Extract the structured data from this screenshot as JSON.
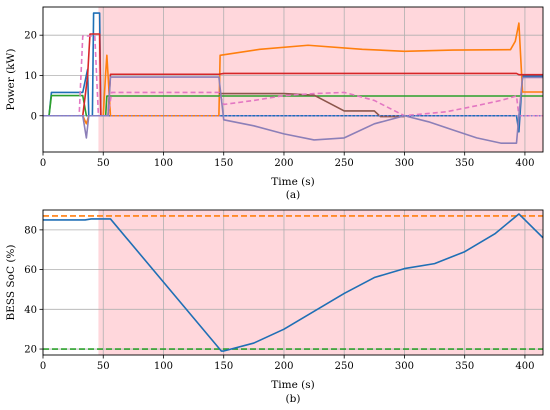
{
  "chart_data": [
    {
      "type": "line",
      "caption": "(a)",
      "xlabel": "Time (s)",
      "ylabel": "Power (kW)",
      "xlim": [
        0,
        415
      ],
      "ylim": [
        -9,
        27
      ],
      "xticks": [
        0,
        50,
        100,
        150,
        200,
        250,
        300,
        350,
        400
      ],
      "yticks": [
        0,
        10,
        20
      ],
      "grid": true,
      "shaded_region": {
        "x_start": 46,
        "x_end": 415,
        "color": "#ffd7dc"
      },
      "series": [
        {
          "color": "#1f6fb5",
          "style": "solid",
          "points": [
            [
              0,
              0
            ],
            [
              5,
              0
            ],
            [
              7,
              5.8
            ],
            [
              30,
              5.8
            ],
            [
              33,
              5.8
            ],
            [
              37,
              11.5
            ],
            [
              38,
              0
            ],
            [
              41,
              0
            ],
            [
              42,
              25.5
            ],
            [
              47,
              25.5
            ],
            [
              48,
              0
            ],
            [
              146,
              0
            ],
            [
              393,
              0
            ],
            [
              395,
              -4
            ],
            [
              398,
              9.8
            ],
            [
              415,
              9.8
            ]
          ]
        },
        {
          "color": "#ff7f0e",
          "style": "solid",
          "points": [
            [
              0,
              0
            ],
            [
              33,
              0
            ],
            [
              36,
              -2
            ],
            [
              38,
              0
            ],
            [
              50,
              0
            ],
            [
              52,
              10.5
            ],
            [
              53,
              15
            ],
            [
              56,
              0
            ],
            [
              146,
              0
            ],
            [
              147,
              15
            ],
            [
              180,
              16.5
            ],
            [
              220,
              17.5
            ],
            [
              265,
              16.5
            ],
            [
              300,
              16
            ],
            [
              340,
              16.3
            ],
            [
              388,
              16.4
            ],
            [
              392,
              18.5
            ],
            [
              395,
              23
            ],
            [
              398,
              5.9
            ],
            [
              415,
              5.9
            ]
          ]
        },
        {
          "color": "#2ca02c",
          "style": "solid",
          "points": [
            [
              0,
              0
            ],
            [
              5,
              0
            ],
            [
              7,
              5
            ],
            [
              30,
              5
            ],
            [
              33,
              5
            ],
            [
              36,
              0
            ],
            [
              52,
              0
            ],
            [
              53,
              4.9
            ],
            [
              146,
              4.9
            ],
            [
              350,
              4.9
            ],
            [
              390,
              4.9
            ],
            [
              415,
              4.9
            ]
          ]
        },
        {
          "color": "#d62728",
          "style": "solid",
          "points": [
            [
              0,
              0
            ],
            [
              33,
              0
            ],
            [
              37,
              9.8
            ],
            [
              39,
              20.3
            ],
            [
              47,
              20.3
            ],
            [
              48,
              0
            ],
            [
              54,
              0
            ],
            [
              56,
              10.3
            ],
            [
              146,
              10.3
            ],
            [
              150,
              10.5
            ],
            [
              393,
              10.5
            ],
            [
              395,
              10.2
            ],
            [
              415,
              10.2
            ]
          ]
        },
        {
          "color": "#8c564b",
          "style": "solid",
          "points": [
            [
              146,
              5.5
            ],
            [
              200,
              5.5
            ],
            [
              225,
              5.1
            ],
            [
              250,
              1.2
            ],
            [
              275,
              1.2
            ],
            [
              280,
              -0.2
            ],
            [
              300,
              -0.2
            ]
          ]
        },
        {
          "color": "#e377c2",
          "style": "dashed",
          "points": [
            [
              0,
              0
            ],
            [
              30,
              0
            ],
            [
              33,
              19.8
            ],
            [
              43,
              19.8
            ],
            [
              46,
              0
            ],
            [
              54,
              0
            ],
            [
              57,
              5.8
            ],
            [
              146,
              5.8
            ],
            [
              150,
              2.8
            ],
            [
              175,
              3.8
            ],
            [
              200,
              5
            ],
            [
              225,
              5.5
            ],
            [
              250,
              5.8
            ],
            [
              275,
              3.8
            ],
            [
              290,
              1.5
            ],
            [
              300,
              0
            ],
            [
              335,
              1
            ],
            [
              360,
              2.5
            ],
            [
              380,
              3.8
            ],
            [
              393,
              4.9
            ],
            [
              395,
              0
            ],
            [
              415,
              0
            ]
          ]
        },
        {
          "color": "#8c7fb8",
          "style": "solid",
          "points": [
            [
              0,
              0
            ],
            [
              33,
              0
            ],
            [
              36,
              -5.5
            ],
            [
              38,
              0
            ],
            [
              54,
              0
            ],
            [
              56,
              9.6
            ],
            [
              146,
              9.6
            ],
            [
              150,
              -1
            ],
            [
              175,
              -2.5
            ],
            [
              200,
              -4.5
            ],
            [
              225,
              -6
            ],
            [
              250,
              -5.5
            ],
            [
              275,
              -2
            ],
            [
              300,
              0
            ],
            [
              320,
              -1.5
            ],
            [
              340,
              -3.5
            ],
            [
              360,
              -5.5
            ],
            [
              380,
              -6.8
            ],
            [
              393,
              -6.8
            ],
            [
              395,
              0
            ],
            [
              398,
              9.5
            ],
            [
              415,
              9.5
            ]
          ]
        },
        {
          "color": "#7f7fd6",
          "style": "dotted",
          "points": [
            [
              0,
              0
            ],
            [
              415,
              0
            ]
          ]
        }
      ]
    },
    {
      "type": "line",
      "caption": "(b)",
      "xlabel": "Time (s)",
      "ylabel": "BESS SoC (%)",
      "xlim": [
        0,
        415
      ],
      "ylim": [
        17,
        90
      ],
      "xticks": [
        0,
        50,
        100,
        150,
        200,
        250,
        300,
        350,
        400
      ],
      "yticks": [
        20,
        40,
        60,
        80
      ],
      "ytick_labels": [
        "20",
        "40",
        "60",
        "80"
      ],
      "grid": true,
      "shaded_region": {
        "x_start": 46,
        "x_end": 415,
        "color": "#ffd7dc"
      },
      "hlines": [
        {
          "y": 87,
          "color": "#ff7f0e",
          "style": "dashed"
        },
        {
          "y": 20,
          "color": "#2ca02c",
          "style": "dashed"
        }
      ],
      "series": [
        {
          "color": "#1f6fb5",
          "style": "solid",
          "points": [
            [
              0,
              85
            ],
            [
              35,
              85
            ],
            [
              40,
              85.5
            ],
            [
              56,
              85.5
            ],
            [
              148,
              19
            ],
            [
              150,
              19
            ],
            [
              175,
              23
            ],
            [
              200,
              30
            ],
            [
              225,
              39
            ],
            [
              250,
              48
            ],
            [
              275,
              56
            ],
            [
              300,
              60.5
            ],
            [
              325,
              63
            ],
            [
              350,
              69
            ],
            [
              375,
              78
            ],
            [
              395,
              88
            ],
            [
              415,
              76
            ]
          ]
        }
      ]
    }
  ]
}
